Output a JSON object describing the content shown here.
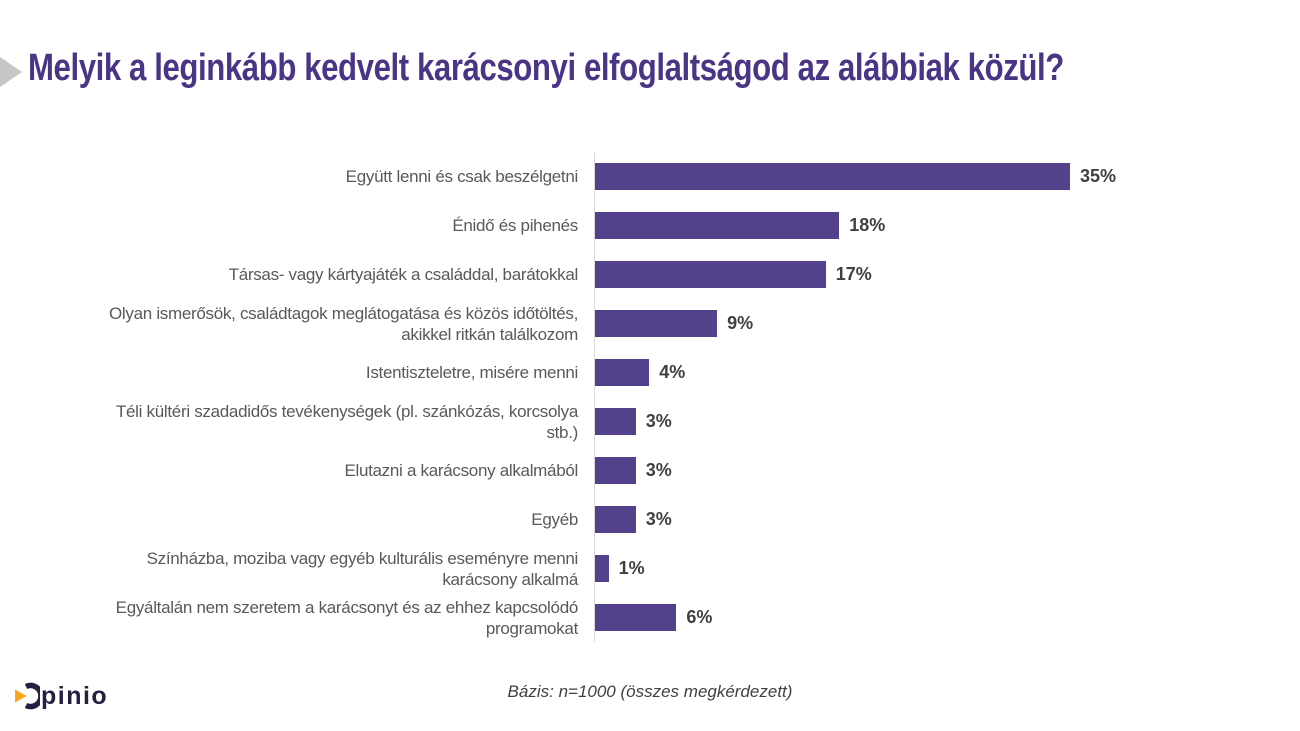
{
  "title": "Melyik a leginkább kedvelt karácsonyi elfoglaltságod az alábbiak közül?",
  "chart_data": {
    "type": "bar",
    "orientation": "horizontal",
    "title": "Melyik a leginkább kedvelt karácsonyi elfoglaltságod az alábbiak közül?",
    "categories": [
      "Együtt lenni és csak beszélgetni",
      "Énidő és pihenés",
      "Társas- vagy kártyajáték a családdal, barátokkal",
      "Olyan ismerősök, családtagok meglátogatása és közös időtöltés,\nakikkel ritkán találkozom",
      "Istentiszteletre, misére menni",
      "Téli kültéri szadadidős tevékenységek (pl. szánkózás, korcsolya\nstb.)",
      "Elutazni a karácsony alkalmából",
      "Egyéb",
      "Színházba, moziba vagy egyéb kulturális eseményre menni\nkarácsony alkalmá",
      "Egyáltalán nem szeretem a karácsonyt és az ehhez kapcsolódó\nprogramokat"
    ],
    "values": [
      35,
      18,
      17,
      9,
      4,
      3,
      3,
      3,
      1,
      6
    ],
    "value_labels": [
      "35%",
      "18%",
      "17%",
      "9%",
      "4%",
      "3%",
      "3%",
      "3%",
      "1%",
      "6%"
    ],
    "xlabel": "",
    "ylabel": "",
    "xlim": [
      0,
      35
    ],
    "grid": false,
    "legend": false,
    "bar_color": "#54418c",
    "label_color": "#595959",
    "value_label_color": "#404040",
    "axis_line_color": "#d9d9d9"
  },
  "footer": {
    "note": "Bázis: n=1000 (összes megkérdezett)",
    "logo_text": "opinio"
  },
  "colors": {
    "title": "#4a3486",
    "arrow_gray": "#c6c6c6",
    "logo_navy": "#232042",
    "logo_orange": "#f6a81c"
  }
}
